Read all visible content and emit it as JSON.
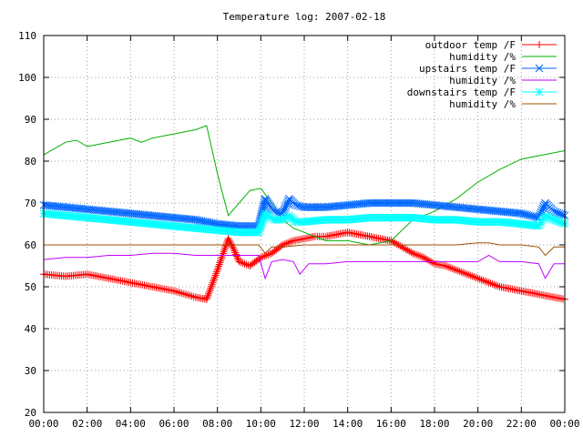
{
  "chart_data": {
    "type": "line",
    "title": "Temperature log: 2007-02-18",
    "xlabel": "",
    "ylabel": "",
    "ylim": [
      20,
      110
    ],
    "xlim": [
      0,
      24
    ],
    "grid": true,
    "legend_position": "top-right",
    "x_ticks": [
      "00:00",
      "02:00",
      "04:00",
      "06:00",
      "08:00",
      "10:00",
      "12:00",
      "14:00",
      "16:00",
      "18:00",
      "20:00",
      "22:00",
      "00:00"
    ],
    "y_ticks": [
      "20",
      "30",
      "40",
      "50",
      "60",
      "70",
      "80",
      "90",
      "100",
      "110"
    ],
    "series": [
      {
        "name": "outdoor temp /F",
        "color": "#ff0000",
        "marker": "plus",
        "x": [
          0,
          1,
          2,
          3,
          4,
          5,
          6,
          7,
          7.5,
          8,
          8.5,
          8.75,
          9,
          9.5,
          10,
          10.5,
          11,
          11.5,
          12,
          12.5,
          13,
          13.5,
          14,
          14.5,
          15,
          15.5,
          16,
          16.5,
          17,
          17.5,
          18,
          18.5,
          19,
          19.5,
          20,
          20.5,
          21,
          21.5,
          22,
          22.5,
          23,
          23.5,
          24
        ],
        "y": [
          53,
          52.5,
          53,
          52,
          51,
          50,
          49,
          47.5,
          47,
          54,
          61.5,
          59,
          56,
          55,
          57,
          58,
          60,
          61,
          61.5,
          62,
          62,
          62.5,
          63,
          62.5,
          62,
          61.5,
          61,
          59.5,
          58,
          57,
          55.5,
          55,
          54,
          53,
          52,
          51,
          50,
          49.5,
          49,
          48.5,
          48,
          47.5,
          47
        ]
      },
      {
        "name": "humidity /%",
        "color": "#00b000",
        "marker": "none",
        "x": [
          0,
          0.5,
          1,
          1.5,
          2,
          2.5,
          3,
          4,
          4.5,
          5,
          5.5,
          6,
          7,
          7.5,
          8,
          8.5,
          9,
          9.5,
          10,
          10.5,
          11,
          11.5,
          12,
          12.5,
          13,
          14,
          15,
          16,
          17,
          17.5,
          18,
          19,
          20,
          21,
          22,
          23,
          24
        ],
        "y": [
          81.5,
          83,
          84.5,
          85,
          83.5,
          84,
          84.5,
          85.5,
          84.5,
          85.5,
          86,
          86.5,
          87.5,
          88.5,
          77,
          67,
          70,
          73,
          73.5,
          70,
          66,
          64,
          63,
          62,
          61,
          61,
          60,
          61,
          66,
          67,
          68,
          71,
          75,
          78,
          80.5,
          81.5,
          82.5
        ]
      },
      {
        "name": "upstairs temp /F",
        "color": "#0066ff",
        "marker": "x",
        "x": [
          0,
          1,
          2,
          3,
          4,
          5,
          6,
          7,
          8,
          9,
          9.9,
          10.2,
          10.6,
          11,
          11.3,
          11.6,
          12,
          13,
          14,
          15,
          16,
          17,
          18,
          19,
          20,
          21,
          22,
          22.8,
          23.1,
          23.5,
          24
        ],
        "y": [
          69.5,
          69,
          68.5,
          68,
          67.5,
          67,
          66.5,
          66,
          65,
          64.5,
          64.5,
          71,
          68,
          67.5,
          71,
          69.5,
          69,
          69,
          69.5,
          70,
          70,
          70,
          69.5,
          69,
          68.5,
          68,
          67.5,
          66.5,
          70,
          68,
          67
        ]
      },
      {
        "name": "humidity /%",
        "color": "#c000ff",
        "marker": "none",
        "x": [
          0,
          1,
          2,
          3,
          4,
          5,
          6,
          7,
          8,
          9,
          9.9,
          10.2,
          10.5,
          11,
          11.5,
          11.8,
          12.2,
          13,
          14,
          15,
          16,
          17,
          18,
          19,
          20,
          20.5,
          21,
          22,
          22.8,
          23.1,
          23.5,
          24
        ],
        "y": [
          56.5,
          57,
          57,
          57.5,
          57.5,
          58,
          58,
          57.5,
          57.5,
          57.5,
          57.5,
          52,
          56,
          56.5,
          56,
          53,
          55.5,
          55.5,
          56,
          56,
          56,
          56,
          56,
          56,
          56,
          57.5,
          56,
          56,
          55.5,
          52,
          55.5,
          55.5
        ]
      },
      {
        "name": "downstairs temp /F",
        "color": "#00ffff",
        "marker": "asterisk",
        "x": [
          0,
          1,
          2,
          3,
          4,
          5,
          6,
          7,
          8,
          9,
          9.9,
          10.2,
          10.6,
          11,
          11.3,
          11.6,
          12,
          13,
          14,
          15,
          16,
          17,
          18,
          19,
          20,
          21,
          22,
          22.8,
          23.1,
          23.5,
          24
        ],
        "y": [
          67.5,
          67,
          66.5,
          66,
          65.5,
          65,
          64.5,
          64,
          63.5,
          63,
          63,
          67.5,
          66,
          66,
          67,
          65.5,
          65.5,
          66,
          66,
          66.5,
          66.5,
          66.5,
          66,
          66,
          65.5,
          65.5,
          65,
          64.5,
          67,
          66,
          65
        ]
      },
      {
        "name": "humidity /%",
        "color": "#a05000",
        "marker": "none",
        "x": [
          0,
          1,
          2,
          3,
          4,
          5,
          6,
          7,
          8,
          9,
          9.9,
          10.2,
          10.5,
          11,
          12,
          13,
          14,
          15,
          16,
          17,
          18,
          19,
          20,
          20.5,
          21,
          22,
          22.8,
          23.1,
          23.5,
          24
        ],
        "y": [
          60,
          60,
          60,
          60,
          60,
          60,
          60,
          60,
          60,
          60,
          60,
          58,
          59.5,
          59.5,
          60,
          60,
          60,
          60,
          60,
          60,
          60,
          60,
          60.5,
          60.5,
          60,
          60,
          59.5,
          57.5,
          59.5,
          59.5
        ]
      }
    ]
  }
}
